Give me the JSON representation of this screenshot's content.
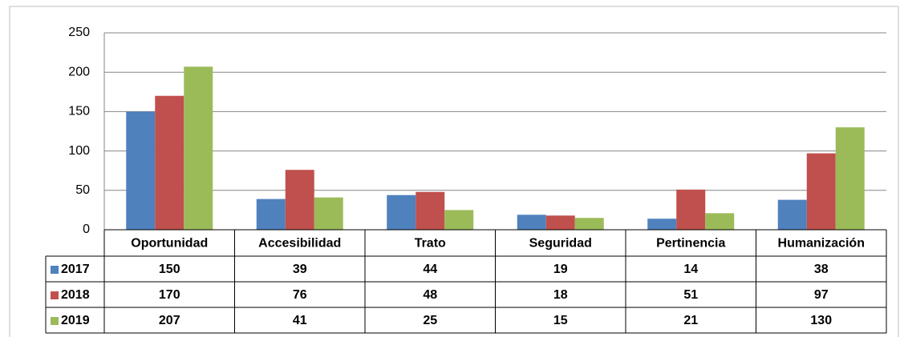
{
  "chart_data": {
    "type": "bar",
    "categories": [
      "Oportunidad",
      "Accesibilidad",
      "Trato",
      "Seguridad",
      "Pertinencia",
      "Humanización"
    ],
    "series": [
      {
        "name": "2017",
        "color": "#4f81bd",
        "values": [
          150,
          39,
          44,
          19,
          14,
          38
        ]
      },
      {
        "name": "2018",
        "color": "#c0504d",
        "values": [
          170,
          76,
          48,
          18,
          51,
          97
        ]
      },
      {
        "name": "2019",
        "color": "#9bbb59",
        "values": [
          207,
          41,
          25,
          15,
          21,
          130
        ]
      }
    ],
    "ylim": [
      0,
      250
    ],
    "yticks": [
      0,
      50,
      100,
      150,
      200,
      250
    ],
    "grid": true
  }
}
